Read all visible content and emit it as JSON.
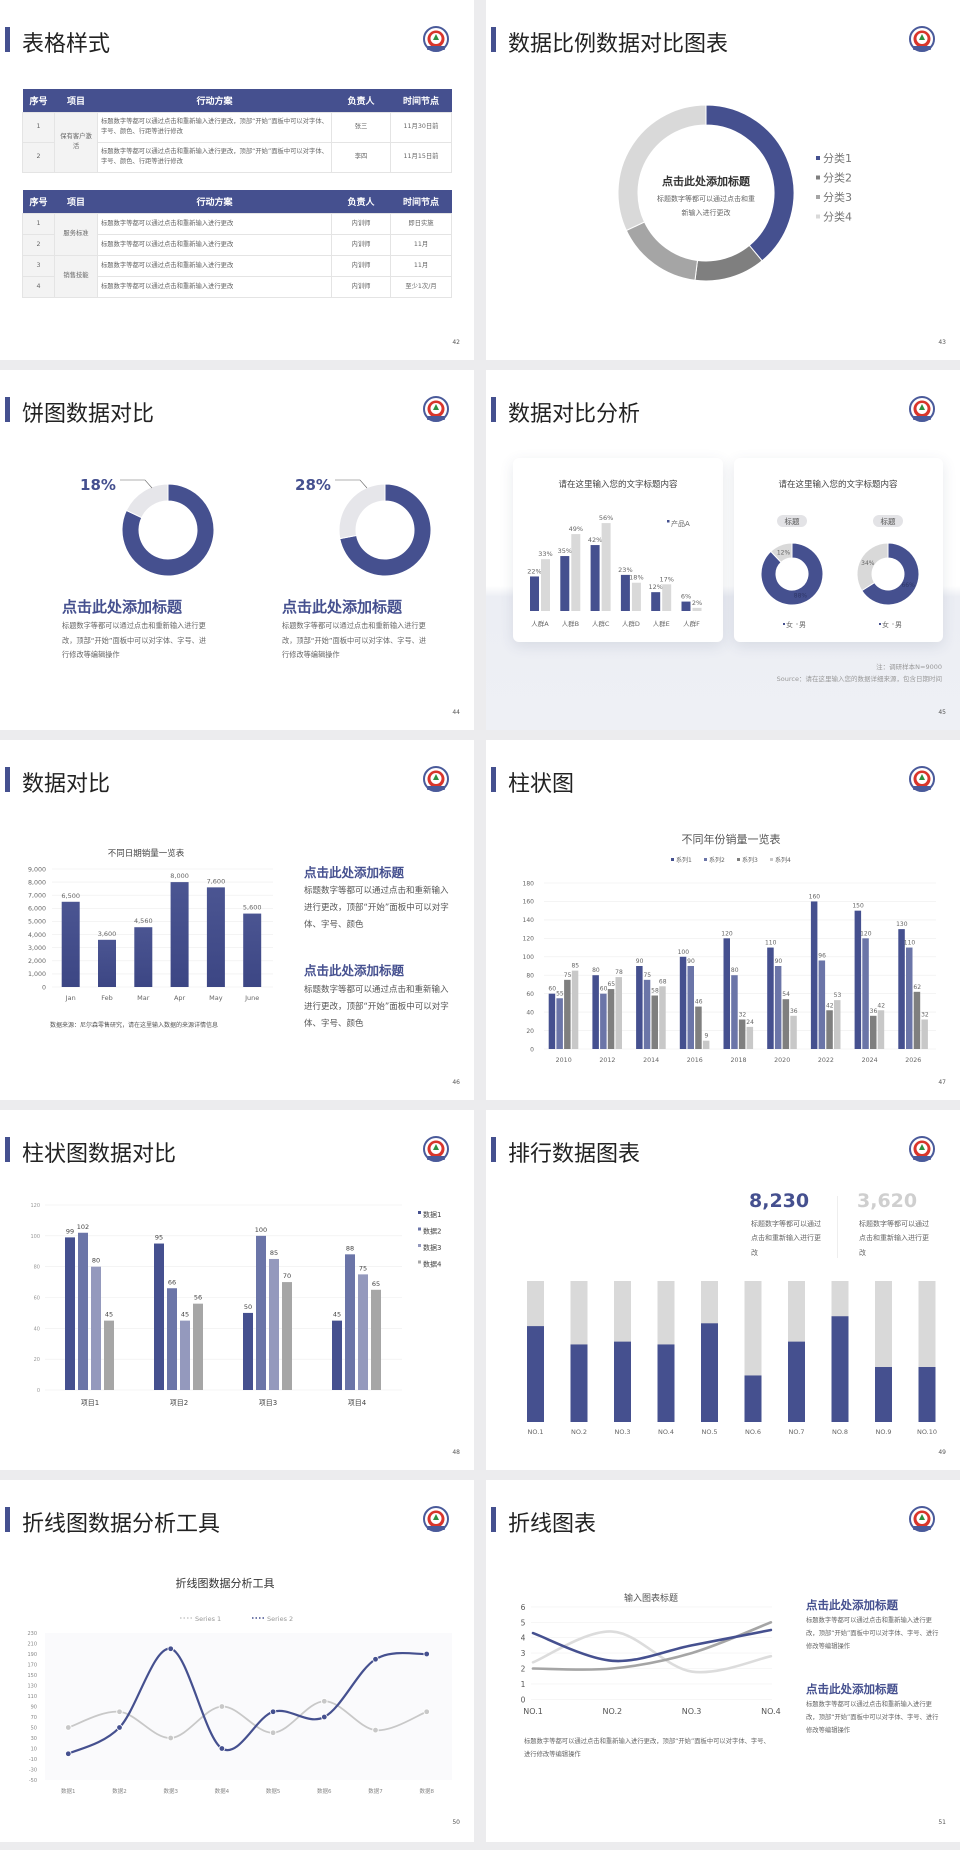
{
  "slides": [
    {
      "title": "表格样式",
      "page": "42",
      "table1": {
        "headers": [
          "序号",
          "项目",
          "行动方案",
          "负责人",
          "时间节点"
        ],
        "group": "保有客户激活",
        "rows": [
          {
            "no": "1",
            "action": "标题数字等都可以通过点击和重新输入进行更改，顶部“开始”面板中可以对字体、字号、颜色、行距等进行修改",
            "owner": "张三",
            "time": "11月30日前"
          },
          {
            "no": "2",
            "action": "标题数字等都可以通过点击和重新输入进行更改，顶部“开始”面板中可以对字体、字号、颜色、行距等进行修改",
            "owner": "李四",
            "time": "11月15日前"
          }
        ]
      },
      "table2": {
        "headers": [
          "序号",
          "项目",
          "行动方案",
          "负责人",
          "时间节点"
        ],
        "groups": [
          "服务标准",
          "销售技能"
        ],
        "rows": [
          {
            "no": "1",
            "action": "标题数字等都可以通过点击和重新输入进行更改",
            "owner": "内训师",
            "time": "即日实施"
          },
          {
            "no": "2",
            "action": "标题数字等都可以通过点击和重新输入进行更改",
            "owner": "内训师",
            "time": "11月"
          },
          {
            "no": "3",
            "action": "标题数字等都可以通过点击和重新输入进行更改",
            "owner": "内训师",
            "time": "11月"
          },
          {
            "no": "4",
            "action": "标题数字等都可以通过点击和重新输入进行更改",
            "owner": "内训师",
            "time": "至少1次/月"
          }
        ]
      }
    },
    {
      "title": "数据比例数据对比图表",
      "page": "43",
      "center_title": "点击此处添加标题",
      "center_body": "标题数字等都可以通过点击和重新输入进行更改"
    },
    {
      "title": "饼图数据对比",
      "page": "44",
      "blocks": [
        {
          "title": "点击此处添加标题",
          "body": "标题数字等都可以通过点击和重新输入进行更改，顶部“开始”面板中可以对字体、字号、进行修改等编辑操作"
        },
        {
          "title": "点击此处添加标题",
          "body": "标题数字等都可以通过点击和重新输入进行更改，顶部“开始”面板中可以对字体、字号、进行修改等编辑操作"
        }
      ]
    },
    {
      "title": "数据对比分析",
      "page": "45",
      "note": "注：调研样本N=9000",
      "source": "Source：请在这里输入您的数据详细来源，包含日期时间"
    },
    {
      "title": "数据对比",
      "page": "46",
      "source": "数据来源：尼尔森零售研究，请在这里输入数据的来源详情信息",
      "blocks": [
        {
          "title": "点击此处添加标题",
          "body": "标题数字等都可以通过点击和重新输入进行更改，顶部“开始”面板中可以对字体、字号、颜色"
        },
        {
          "title": "点击此处添加标题",
          "body": "标题数字等都可以通过点击和重新输入进行更改，顶部“开始”面板中可以对字体、字号、颜色"
        }
      ]
    },
    {
      "title": "柱状图",
      "page": "47"
    },
    {
      "title": "柱状图数据对比",
      "page": "48"
    },
    {
      "title": "排行数据图表",
      "page": "49",
      "stats": [
        {
          "value": "8,230",
          "body": "标题数字等都可以通过点击和重新输入进行更改"
        },
        {
          "value": "3,620",
          "body": "标题数字等都可以通过点击和重新输入进行更改"
        }
      ]
    },
    {
      "title": "折线图数据分析工具",
      "page": "50"
    },
    {
      "title": "折线图表",
      "page": "51",
      "caption": "标题数字等都可以通过点击和重新输入进行更改，顶部“开始”面板中可以对字体、字号、进行修改等编辑操作",
      "blocks": [
        {
          "title": "点击此处添加标题",
          "body": "标题数字等都可以通过点击和重新输入进行更改，顶部“开始”面板中可以对字体、字号、进行修改等编辑操作"
        },
        {
          "title": "点击此处添加标题",
          "body": "标题数字等都可以通过点击和重新输入进行更改，顶部“开始”面板中可以对字体、字号、进行修改等编辑操作"
        }
      ]
    }
  ],
  "colors": {
    "accent": "#45508f",
    "light_gray": "#d9d9d9"
  },
  "chart_data": [
    {
      "type": "pie",
      "variant": "donut",
      "categories": [
        "分类1",
        "分类2",
        "分类3",
        "分类4"
      ],
      "values": [
        39,
        13,
        16,
        32
      ],
      "colors": [
        "#45508f",
        "#7f7f7f",
        "#a5a5a5",
        "#d9d9d9"
      ],
      "legend": "right"
    },
    {
      "type": "pie",
      "variant": "donut",
      "charts": [
        {
          "label": "18%",
          "values": [
            82,
            18
          ]
        },
        {
          "label": "28%",
          "values": [
            72,
            28
          ]
        }
      ],
      "colors": [
        "#45508f",
        "#e6e6ea"
      ]
    },
    {
      "type": "bar",
      "title": "请在这里输入您的文字标题内容",
      "categories": [
        "人群A",
        "人群B",
        "人群C",
        "人群D",
        "人群E",
        "人群F"
      ],
      "series": [
        {
          "name": "产品A",
          "values": [
            22,
            35,
            42,
            23,
            12,
            6
          ],
          "color": "#45508f"
        },
        {
          "values": [
            33,
            49,
            56,
            18,
            17,
            2
          ],
          "color": "#d9d9d9"
        }
      ],
      "unit": "%",
      "legend": "top-right"
    },
    {
      "type": "pie",
      "variant": "donut",
      "title": "请在这里输入您的文字标题内容",
      "charts": [
        {
          "tag": "标题",
          "values": [
            88,
            12
          ],
          "labels": [
            "88%",
            "12%"
          ]
        },
        {
          "tag": "标题",
          "values": [
            66,
            34
          ],
          "labels": [
            "66%",
            "34%"
          ]
        }
      ],
      "legend": [
        "女",
        "男"
      ],
      "colors": [
        "#45508f",
        "#d9d9d9"
      ]
    },
    {
      "type": "bar",
      "title": "不同日期销量一览表",
      "categories": [
        "Jan",
        "Feb",
        "Mar",
        "Apr",
        "May",
        "June"
      ],
      "values": [
        6500,
        3600,
        4560,
        8000,
        7600,
        5600
      ],
      "labels": [
        "6,500",
        "3,600",
        "4,560",
        "8,000",
        "7,600",
        "5,600"
      ],
      "ylim": [
        0,
        9000
      ],
      "y_ticks": [
        "0",
        "1,000",
        "2,000",
        "3,000",
        "4,000",
        "5,000",
        "6,000",
        "7,000",
        "8,000",
        "9,000"
      ],
      "grid": true
    },
    {
      "type": "bar",
      "title": "不同年份销量一览表",
      "categories": [
        "2010",
        "2012",
        "2014",
        "2016",
        "2018",
        "2020",
        "2022",
        "2024",
        "2026"
      ],
      "series": [
        {
          "name": "系列1",
          "values": [
            60,
            80,
            90,
            100,
            120,
            110,
            160,
            150,
            130
          ],
          "color": "#45508f"
        },
        {
          "name": "系列2",
          "values": [
            55,
            60,
            75,
            90,
            80,
            90,
            96,
            120,
            110
          ],
          "color": "#6b75a8"
        },
        {
          "name": "系列3",
          "values": [
            75,
            65,
            58,
            46,
            32,
            54,
            42,
            36,
            62
          ],
          "color": "#7f7f7f"
        },
        {
          "name": "系列4",
          "values": [
            85,
            78,
            68,
            9,
            24,
            36,
            53,
            42,
            32
          ],
          "color": "#c8c8c8"
        }
      ],
      "ylim": [
        0,
        180
      ],
      "y_ticks": [
        "0",
        "20",
        "40",
        "60",
        "80",
        "100",
        "120",
        "140",
        "160",
        "180"
      ],
      "legend": "top",
      "grid": true
    },
    {
      "type": "bar",
      "categories": [
        "项目1",
        "项目2",
        "项目3",
        "项目4"
      ],
      "series": [
        {
          "name": "数据1",
          "values": [
            99,
            95,
            50,
            45
          ],
          "color": "#45508f"
        },
        {
          "name": "数据2",
          "values": [
            102,
            66,
            100,
            88
          ],
          "color": "#6b75a8"
        },
        {
          "name": "数据3",
          "values": [
            80,
            45,
            85,
            75
          ],
          "color": "#9499bd"
        },
        {
          "name": "数据4",
          "values": [
            45,
            56,
            70,
            65
          ],
          "color": "#a6a6a6"
        }
      ],
      "ylim": [
        0,
        120
      ],
      "y_ticks": [
        "0",
        "20",
        "40",
        "60",
        "80",
        "100",
        "120"
      ],
      "legend": "right",
      "grid": true
    },
    {
      "type": "bar",
      "variant": "stacked-100",
      "categories": [
        "NO.1",
        "NO.2",
        "NO.3",
        "NO.4",
        "NO.5",
        "NO.6",
        "NO.7",
        "NO.8",
        "NO.9",
        "NO.10"
      ],
      "values": [
        0.68,
        0.55,
        0.57,
        0.55,
        0.7,
        0.33,
        0.57,
        0.75,
        0.39,
        0.39
      ],
      "colors": [
        "#45508f",
        "#d9d9d9"
      ]
    },
    {
      "type": "line",
      "title": "折线图数据分析工具",
      "categories": [
        "数据1",
        "数据2",
        "数据3",
        "数据4",
        "数据5",
        "数据6",
        "数据7",
        "数据8"
      ],
      "series": [
        {
          "name": "Series 1",
          "values": [
            50,
            80,
            30,
            90,
            40,
            100,
            45,
            80
          ],
          "color": "#c8c8c8"
        },
        {
          "name": "Series 2",
          "values": [
            0,
            50,
            200,
            10,
            80,
            70,
            180,
            190
          ],
          "color": "#45508f"
        }
      ],
      "ylim": [
        -50,
        230
      ],
      "y_ticks": [
        "-50",
        "-30",
        "-10",
        "10",
        "30",
        "50",
        "70",
        "90",
        "110",
        "130",
        "150",
        "170",
        "190",
        "210",
        "230"
      ],
      "legend": "top",
      "smooth": true
    },
    {
      "type": "line",
      "title": "输入图表标题",
      "categories": [
        "NO.1",
        "NO.2",
        "NO.3",
        "NO.4"
      ],
      "series": [
        {
          "values": [
            4.3,
            2.5,
            3.5,
            4.5
          ],
          "color": "#45508f"
        },
        {
          "values": [
            2.0,
            2.0,
            3.0,
            5.0
          ],
          "color": "#a5a5a5"
        },
        {
          "values": [
            2.4,
            4.4,
            1.8,
            2.8
          ],
          "color": "#dcdcdc"
        }
      ],
      "ylim": [
        0,
        6
      ],
      "y_ticks": [
        "0",
        "1",
        "2",
        "3",
        "4",
        "5",
        "6"
      ],
      "smooth": true,
      "grid": true
    }
  ]
}
